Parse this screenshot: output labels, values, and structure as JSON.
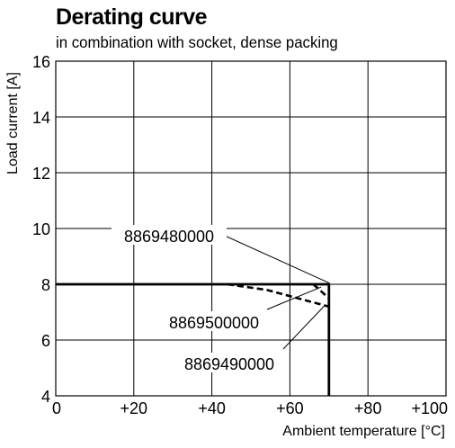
{
  "chart_data": {
    "type": "line",
    "title": "Derating curve",
    "subtitle": "in combination with socket, dense packing",
    "xlabel": "Ambient temperature [°C]",
    "ylabel": "Load current [A]",
    "xlim": [
      0,
      100
    ],
    "ylim": [
      4,
      16
    ],
    "x_ticks": [
      0,
      20,
      40,
      60,
      80,
      100
    ],
    "x_tick_labels": [
      "0",
      "+20",
      "+40",
      "+60",
      "+80",
      "+100"
    ],
    "y_ticks": [
      4,
      6,
      8,
      10,
      12,
      14,
      16
    ],
    "y_tick_labels": [
      "4",
      "6",
      "8",
      "10",
      "12",
      "14",
      "16"
    ],
    "grid": true,
    "series": [
      {
        "name": "8869480000",
        "style": "solid",
        "points": [
          [
            0,
            8
          ],
          [
            70,
            8
          ],
          [
            70,
            4
          ]
        ]
      },
      {
        "name": "8869500000",
        "style": "dashed",
        "points": [
          [
            44,
            8
          ],
          [
            54,
            7.8
          ],
          [
            62,
            7.5
          ],
          [
            70,
            7.2
          ]
        ]
      },
      {
        "name": "8869490000",
        "style": "dashed",
        "points": [
          [
            66,
            8
          ],
          [
            70,
            7.5
          ]
        ]
      }
    ],
    "annotations": [
      {
        "text": "8869480000",
        "x": 70,
        "y": 8.05
      },
      {
        "text": "8869500000",
        "x": 68,
        "y": 7.9
      },
      {
        "text": "8869490000",
        "x": 69,
        "y": 7.25
      }
    ]
  }
}
